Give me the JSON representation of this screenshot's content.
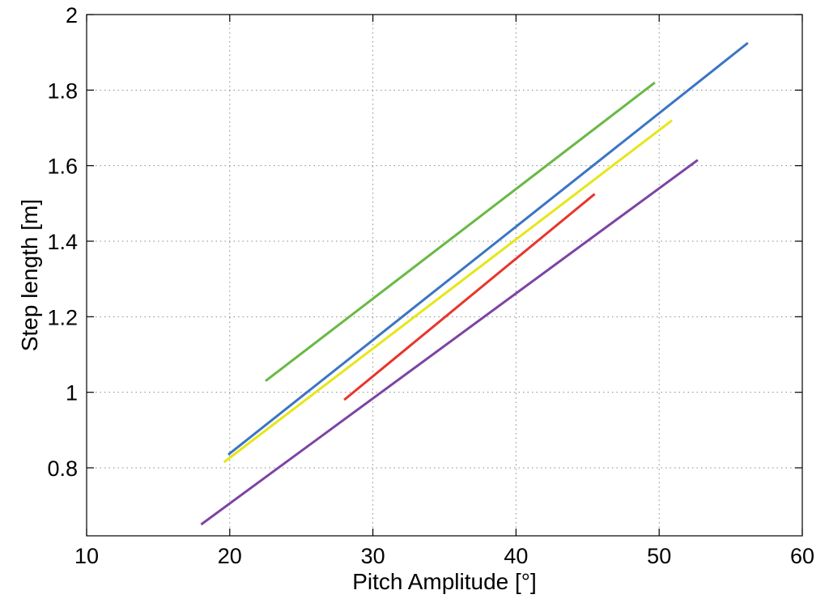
{
  "chart_data": {
    "type": "line",
    "title": "",
    "xlabel": "Pitch Amplitude [°]",
    "ylabel": "Step length [m]",
    "xlim": [
      10,
      60
    ],
    "ylim": [
      0.62,
      2.0
    ],
    "xticks": [
      10,
      20,
      30,
      40,
      50,
      60
    ],
    "yticks": [
      0.8,
      1,
      1.2,
      1.4,
      1.6,
      1.8,
      2
    ],
    "xtick_labels": [
      "10",
      "20",
      "30",
      "40",
      "50",
      "60"
    ],
    "ytick_labels": [
      "0.8",
      "1",
      "1.2",
      "1.4",
      "1.6",
      "1.8",
      "2"
    ],
    "grid": true,
    "legend": "none",
    "series": [
      {
        "color": "#6ab945",
        "x": [
          22.5,
          49.7
        ],
        "y": [
          1.03,
          1.82
        ]
      },
      {
        "color": "#3a75c4",
        "x": [
          19.9,
          56.2
        ],
        "y": [
          0.835,
          1.925
        ]
      },
      {
        "color": "#e6e619",
        "x": [
          19.6,
          50.9
        ],
        "y": [
          0.815,
          1.72
        ]
      },
      {
        "color": "#e8352b",
        "x": [
          28.0,
          45.5
        ],
        "y": [
          0.98,
          1.525
        ]
      },
      {
        "color": "#7c44a3",
        "x": [
          18.0,
          52.7
        ],
        "y": [
          0.65,
          1.615
        ]
      }
    ]
  }
}
